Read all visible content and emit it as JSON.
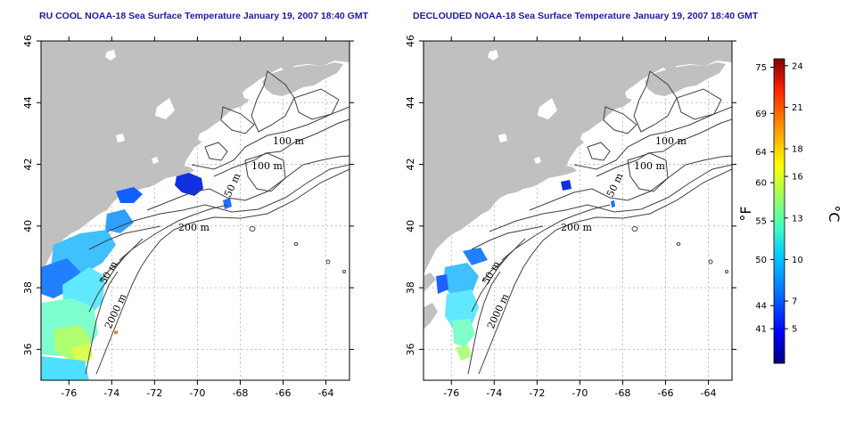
{
  "panels": [
    {
      "title": "RU COOL NOAA-18 Sea Surface Temperature January 19, 2007 18:40 GMT",
      "contour_labels": [
        "100 m",
        "100 m",
        "50 m",
        "200 m",
        "50 m",
        "2000 m"
      ]
    },
    {
      "title": "DECLOUDED NOAA-18 Sea Surface Temperature January 19, 2007 18:40 GMT",
      "contour_labels": [
        "100 m",
        "100 m",
        "50 m",
        "200 m",
        "50 m",
        "2000 m"
      ]
    }
  ],
  "axes": {
    "x_ticks": [
      "-76",
      "-74",
      "-72",
      "-70",
      "-68",
      "-66",
      "-64"
    ],
    "y_ticks": [
      "36",
      "38",
      "40",
      "42",
      "44",
      "46"
    ],
    "lon_range": [
      -77.3,
      -62.9
    ],
    "lat_range": [
      35.0,
      46.0
    ]
  },
  "colorbar": {
    "fahrenheit_ticks": [
      "75",
      "69",
      "64",
      "60",
      "55",
      "50",
      "44",
      "41"
    ],
    "celsius_ticks": [
      "24",
      "21",
      "18",
      "16",
      "13",
      "10",
      "7",
      "5"
    ],
    "unit_f": "°F",
    "unit_c": "°C",
    "celsius_range": [
      2.5,
      24.5
    ],
    "colors": [
      "#000080",
      "#0000ff",
      "#0080ff",
      "#00c8ff",
      "#40ffc0",
      "#a0ff60",
      "#ffff00",
      "#ff9000",
      "#ff2000",
      "#800000"
    ]
  },
  "colors": {
    "land": "#c0c0c0",
    "grid": "#b0b0b0",
    "title": "#1a1aa6"
  }
}
